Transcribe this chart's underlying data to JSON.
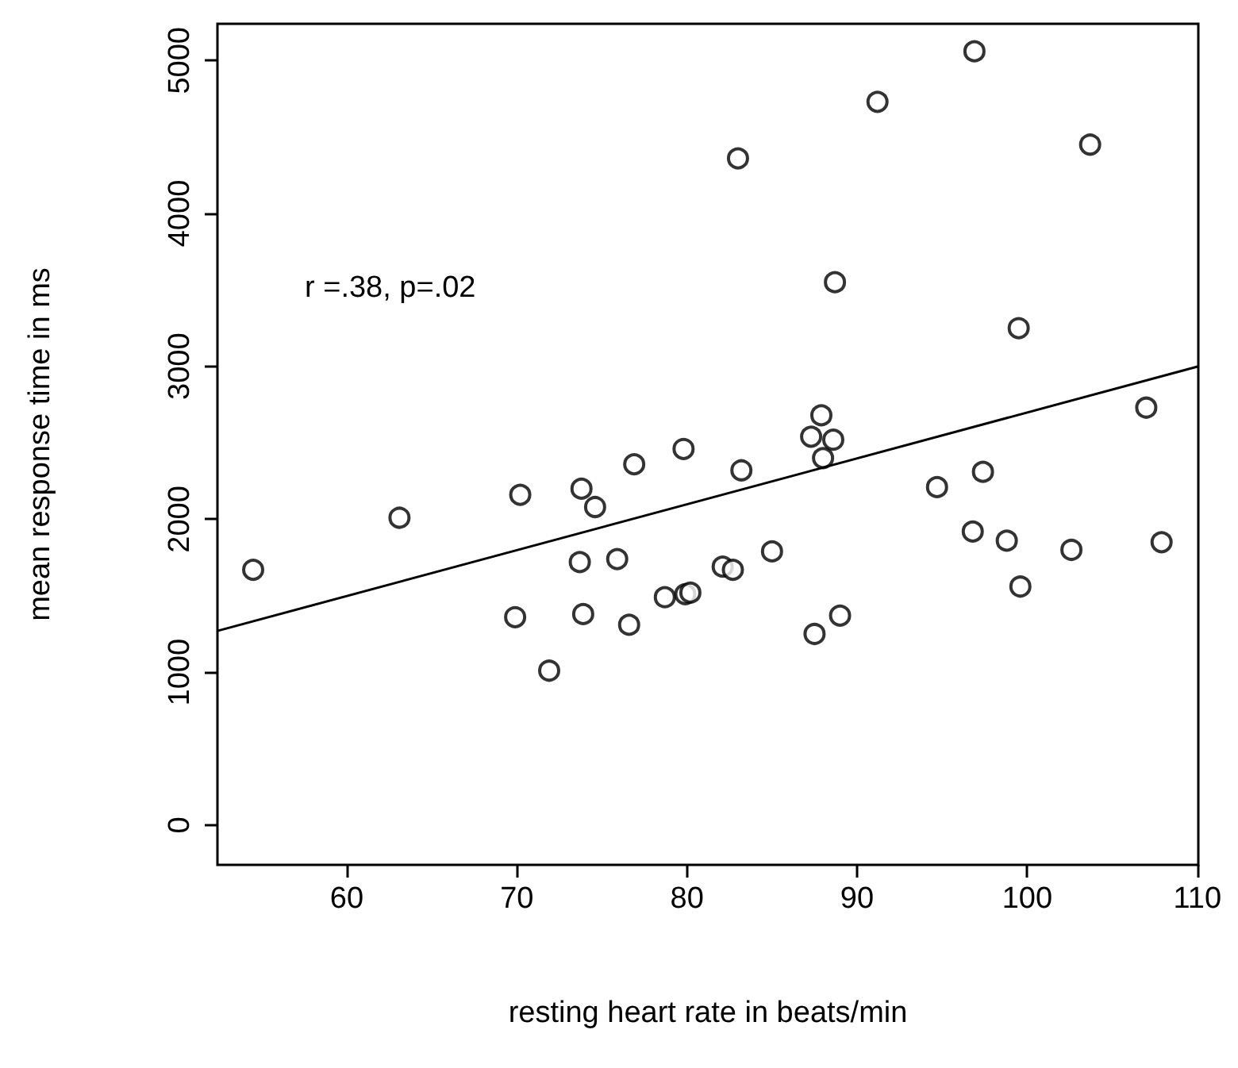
{
  "chart_data": {
    "type": "scatter",
    "xlabel": "resting heart rate in beats/min",
    "ylabel": "mean response time in ms",
    "annotations": [
      "r =.38, p=.02"
    ],
    "xlim": [
      52.4,
      110.06
    ],
    "ylim": [
      -260,
      5240
    ],
    "xticks": [
      60,
      70,
      80,
      90,
      100,
      110
    ],
    "yticks": [
      0,
      1000,
      2000,
      3000,
      4000,
      5000
    ],
    "grid": false,
    "series": [
      {
        "type": "scatter",
        "color": "#000000",
        "marker": "circle",
        "x": [
          54.5,
          63.1,
          70.2,
          73.8,
          74.6,
          76.9,
          79.8,
          69.9,
          73.7,
          73.9,
          75.9,
          76.6,
          71.9,
          78.7,
          79.9,
          80.2,
          82.1,
          82.7,
          85.0,
          83.2,
          87.3,
          88.6,
          88.0,
          87.5,
          89.0,
          94.7,
          97.4,
          96.8,
          98.8,
          99.6,
          102.6,
          107.9,
          96.9,
          91.2,
          83.0,
          103.7,
          88.7,
          99.5,
          107.0,
          87.9
        ],
        "values": [
          1670,
          2010,
          2160,
          2200,
          2080,
          2360,
          2460,
          1360,
          1720,
          1380,
          1740,
          1310,
          1010,
          1490,
          1510,
          1520,
          1690,
          1670,
          1790,
          2320,
          2540,
          2520,
          2400,
          1250,
          1370,
          2210,
          2310,
          1920,
          1860,
          1560,
          1800,
          1850,
          5060,
          4730,
          4360,
          4450,
          3550,
          3250,
          2730,
          2680
        ]
      },
      {
        "type": "line",
        "color": "#000000",
        "marker": "none",
        "line_style": "solid",
        "x": [
          52.4,
          110.06
        ],
        "values": [
          1270,
          3000
        ]
      }
    ]
  }
}
